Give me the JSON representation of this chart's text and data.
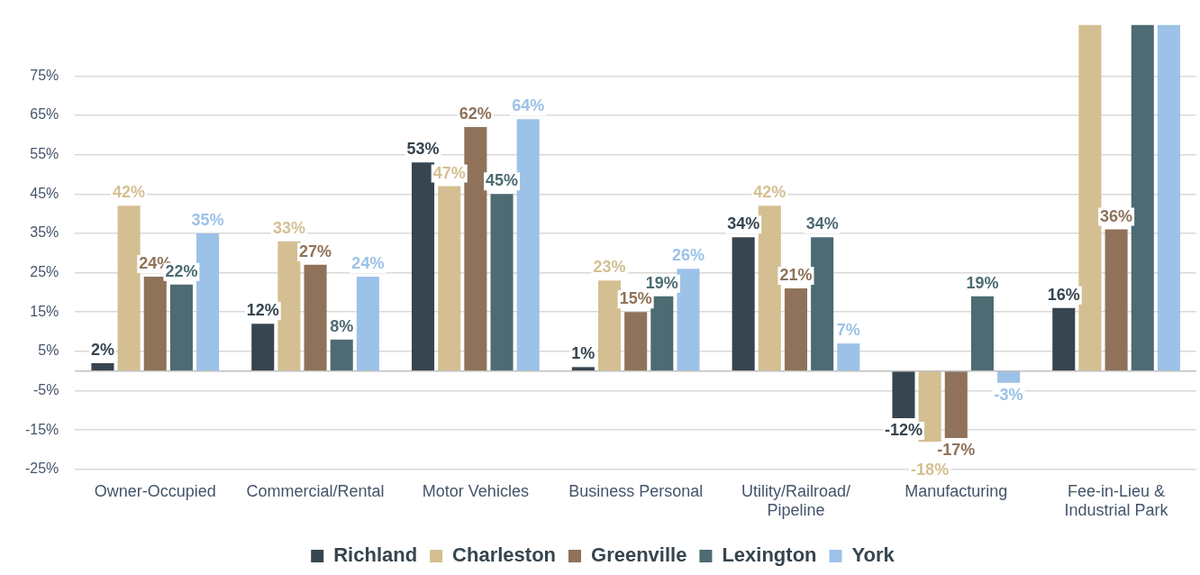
{
  "chart_data": {
    "type": "bar",
    "categories": [
      "Owner-Occupied",
      "Commercial/Rental",
      "Motor Vehicles",
      "Business Personal",
      "Utility/Railroad/Pipeline",
      "Manufacturing",
      "Fee-in-Lieu & Industrial Park"
    ],
    "series": [
      {
        "name": "Richland",
        "color": "#36454f",
        "values": [
          2,
          12,
          53,
          1,
          34,
          -12,
          16
        ],
        "value_labels": [
          "2%",
          "12%",
          "53%",
          "1%",
          "34%",
          "-12%",
          "16%"
        ]
      },
      {
        "name": "Charleston",
        "color": "#d4bf93",
        "values": [
          42,
          33,
          47,
          23,
          42,
          -18,
          88
        ],
        "value_labels": [
          "42%",
          "33%",
          "47%",
          "23%",
          "42%",
          "-18%",
          null
        ]
      },
      {
        "name": "Greenville",
        "color": "#8f7259",
        "values": [
          24,
          27,
          62,
          15,
          21,
          -17,
          36
        ],
        "value_labels": [
          "24%",
          "27%",
          "62%",
          "15%",
          "21%",
          "-17%",
          "36%"
        ]
      },
      {
        "name": "Lexington",
        "color": "#4d6b73",
        "values": [
          22,
          8,
          45,
          19,
          34,
          19,
          88
        ],
        "value_labels": [
          "22%",
          "8%",
          "45%",
          "19%",
          "34%",
          "19%",
          null
        ]
      },
      {
        "name": "York",
        "color": "#9cc2e8",
        "values": [
          35,
          24,
          64,
          26,
          7,
          -3,
          88
        ],
        "value_labels": [
          "35%",
          "24%",
          "64%",
          "26%",
          "7%",
          "-3%",
          null
        ]
      }
    ],
    "ylim": [
      -25,
      88
    ],
    "yticks": [
      {
        "value": -25,
        "label": "-25%"
      },
      {
        "value": -15,
        "label": "-15%"
      },
      {
        "value": -5,
        "label": "-5%"
      },
      {
        "value": 5,
        "label": "5%"
      },
      {
        "value": 15,
        "label": "15%"
      },
      {
        "value": 25,
        "label": "25%"
      },
      {
        "value": 35,
        "label": "35%"
      },
      {
        "value": 45,
        "label": "45%"
      },
      {
        "value": 55,
        "label": "55%"
      },
      {
        "value": 65,
        "label": "65%"
      },
      {
        "value": 75,
        "label": "75%"
      }
    ],
    "grid": "y",
    "legend": "bottom"
  }
}
